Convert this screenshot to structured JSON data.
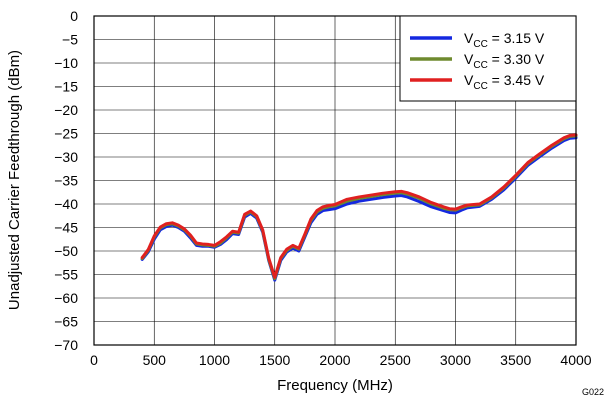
{
  "chart_data": {
    "type": "line",
    "title": "",
    "xlabel": "Frequency (MHz)",
    "ylabel": "Unadjusted Carrier Feedthrough (dBm)",
    "xlim": [
      0,
      4000
    ],
    "ylim": [
      -70,
      0
    ],
    "x_ticks": [
      0,
      500,
      1000,
      1500,
      2000,
      2500,
      3000,
      3500,
      4000
    ],
    "y_ticks": [
      0,
      -5,
      -10,
      -15,
      -20,
      -25,
      -30,
      -35,
      -40,
      -45,
      -50,
      -55,
      -60,
      -65,
      -70
    ],
    "grid": true,
    "legend_position": "top-right",
    "figure_id": "G022",
    "x": [
      400,
      450,
      500,
      550,
      600,
      650,
      700,
      750,
      800,
      850,
      900,
      950,
      1000,
      1050,
      1100,
      1150,
      1200,
      1250,
      1300,
      1350,
      1400,
      1450,
      1500,
      1550,
      1600,
      1650,
      1700,
      1750,
      1800,
      1850,
      1900,
      1950,
      2000,
      2100,
      2200,
      2300,
      2400,
      2500,
      2550,
      2600,
      2700,
      2800,
      2900,
      2950,
      3000,
      3050,
      3100,
      3200,
      3300,
      3400,
      3500,
      3600,
      3700,
      3800,
      3900,
      3950,
      4000
    ],
    "series": [
      {
        "legend_label": {
          "prefix": "V",
          "sub": "CC",
          "suffix": " = 3.15 V"
        },
        "color": "#1428e0",
        "values": [
          -51.8,
          -50.2,
          -47.5,
          -45.5,
          -44.8,
          -44.5,
          -45.0,
          -45.8,
          -47.2,
          -48.8,
          -49.0,
          -49.0,
          -49.2,
          -48.6,
          -47.6,
          -46.3,
          -46.5,
          -42.8,
          -42.0,
          -43.0,
          -46.0,
          -52.0,
          -56.2,
          -52.0,
          -50.2,
          -49.4,
          -50.0,
          -47.0,
          -44.0,
          -42.2,
          -41.4,
          -41.2,
          -41.0,
          -40.0,
          -39.4,
          -39.0,
          -38.6,
          -38.3,
          -38.2,
          -38.5,
          -39.5,
          -40.6,
          -41.4,
          -41.8,
          -41.9,
          -41.3,
          -40.8,
          -40.5,
          -39.0,
          -37.0,
          -34.5,
          -31.8,
          -29.9,
          -28.1,
          -26.5,
          -26.0,
          -25.9
        ]
      },
      {
        "legend_label": {
          "prefix": "V",
          "sub": "CC",
          "suffix": " = 3.30 V"
        },
        "color": "#6e8a2e",
        "values": [
          -51.6,
          -49.9,
          -47.0,
          -45.1,
          -44.4,
          -44.2,
          -44.7,
          -45.5,
          -46.8,
          -48.5,
          -48.7,
          -48.8,
          -49.0,
          -48.3,
          -47.2,
          -46.0,
          -46.2,
          -42.4,
          -41.7,
          -42.7,
          -45.7,
          -51.8,
          -55.9,
          -51.6,
          -49.9,
          -49.0,
          -49.6,
          -46.6,
          -43.5,
          -41.7,
          -40.9,
          -40.6,
          -40.4,
          -39.4,
          -38.8,
          -38.4,
          -38.0,
          -37.7,
          -37.6,
          -37.9,
          -38.8,
          -40.0,
          -40.9,
          -41.2,
          -41.3,
          -40.8,
          -40.4,
          -40.2,
          -38.7,
          -36.6,
          -34.1,
          -31.4,
          -29.5,
          -27.7,
          -26.1,
          -25.6,
          -25.5
        ]
      },
      {
        "legend_label": {
          "prefix": "V",
          "sub": "CC",
          "suffix": " = 3.45 V"
        },
        "color": "#e02020",
        "values": [
          -51.4,
          -49.7,
          -46.8,
          -44.9,
          -44.2,
          -44.0,
          -44.5,
          -45.3,
          -46.6,
          -48.3,
          -48.5,
          -48.6,
          -48.8,
          -48.0,
          -47.0,
          -45.8,
          -46.0,
          -42.2,
          -41.5,
          -42.5,
          -45.5,
          -51.5,
          -55.6,
          -51.4,
          -49.6,
          -48.8,
          -49.4,
          -46.4,
          -43.2,
          -41.4,
          -40.6,
          -40.3,
          -40.1,
          -39.0,
          -38.5,
          -38.1,
          -37.7,
          -37.4,
          -37.3,
          -37.6,
          -38.5,
          -39.7,
          -40.6,
          -41.0,
          -41.1,
          -40.6,
          -40.2,
          -40.0,
          -38.5,
          -36.4,
          -33.9,
          -31.2,
          -29.3,
          -27.5,
          -25.9,
          -25.4,
          -25.3
        ]
      }
    ]
  }
}
